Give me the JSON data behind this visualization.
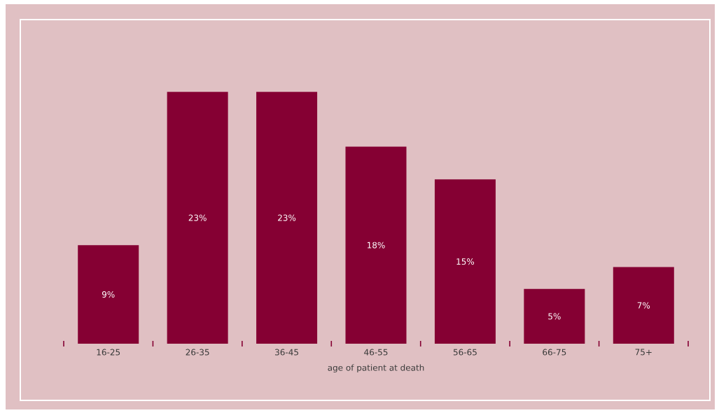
{
  "chart_data": {
    "type": "bar",
    "categories": [
      "16-25",
      "26-35",
      "36-45",
      "46-55",
      "56-65",
      "66-75",
      "75+"
    ],
    "values": [
      9,
      23,
      23,
      18,
      15,
      5,
      7
    ],
    "value_labels": [
      "9%",
      "23%",
      "23%",
      "18%",
      "15%",
      "5%",
      "7%"
    ],
    "color": "#850033",
    "xlabel": "age of patient at death"
  }
}
